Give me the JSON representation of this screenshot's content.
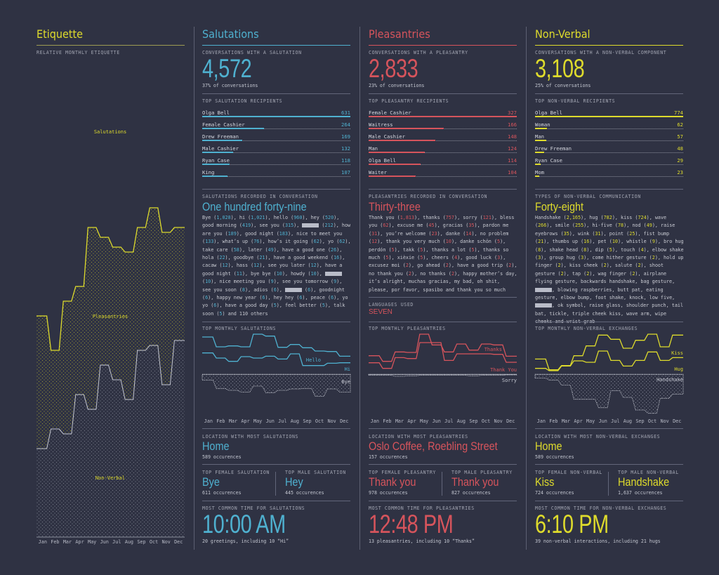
{
  "colors": {
    "background": "#2f3243",
    "salutations": "#4fb1d0",
    "pleasantries": "#d6545c",
    "nonverbal": "#dedb2c",
    "neutral": "#b9bcc8"
  },
  "etiquette": {
    "title": "Etiquette",
    "subtitle": "Relative monthly etiquette",
    "labels": {
      "salutations": "Salutations",
      "pleasantries": "Pleasantries",
      "nonverbal": "Non-Verbal"
    }
  },
  "sections": [
    {
      "key": "salutations",
      "title": "Salutations",
      "total": {
        "label": "Conversations with a salutation",
        "value": "4,572",
        "sub": "37% of conversations"
      },
      "recipients": {
        "label": "Top salutation recipients",
        "items": [
          {
            "name": "Olga Bell",
            "value": 631
          },
          {
            "name": "Female Cashier",
            "value": 264
          },
          {
            "name": "Drew Freeman",
            "value": 169
          },
          {
            "name": "Male Cashier",
            "value": 132
          },
          {
            "name": "Ryan Case",
            "value": 118
          },
          {
            "name": "King",
            "value": 107
          }
        ]
      },
      "recorded": {
        "label": "Salutations recorded in conversation",
        "word": "One hundred forty-nine",
        "items": [
          {
            "t": "Bye",
            "n": "1,028"
          },
          {
            "t": "hi",
            "n": "1,021"
          },
          {
            "t": "hello",
            "n": "960"
          },
          {
            "t": "hey",
            "n": "520"
          },
          {
            "t": "good morning",
            "n": "419"
          },
          {
            "t": "see you",
            "n": "315"
          },
          {
            "redacted": true,
            "n": "212"
          },
          {
            "t": "how are you",
            "n": "189"
          },
          {
            "t": "good night",
            "n": "183"
          },
          {
            "t": "nice to meet you",
            "n": "133"
          },
          {
            "t": "what’s up",
            "n": "76"
          },
          {
            "t": "how’s it going",
            "n": "62"
          },
          {
            "t": "yo",
            "n": "62"
          },
          {
            "t": "take care",
            "n": "58"
          },
          {
            "t": "later",
            "n": "49"
          },
          {
            "t": "have a good one",
            "n": "26"
          },
          {
            "t": "hola",
            "n": "22"
          },
          {
            "t": "goodbye",
            "n": "21"
          },
          {
            "t": "have a good weekend",
            "n": "16"
          },
          {
            "t": "cacaw",
            "n": "12"
          },
          {
            "t": "hass",
            "n": "12"
          },
          {
            "t": "see you later",
            "n": "12"
          },
          {
            "t": "have a good night",
            "n": "11"
          },
          {
            "t": "bye bye",
            "n": "10"
          },
          {
            "t": "howdy",
            "n": "10"
          },
          {
            "redacted": true,
            "n": "10"
          },
          {
            "t": "nice meeting you",
            "n": "9"
          },
          {
            "t": "see you tomorrow",
            "n": "9"
          },
          {
            "t": "see you soon",
            "n": "8"
          },
          {
            "t": "adios",
            "n": "6"
          },
          {
            "redacted": true,
            "n": "6"
          },
          {
            "t": "goodnight",
            "n": "6"
          },
          {
            "t": "happy new year",
            "n": "6"
          },
          {
            "t": "hey hey",
            "n": "6"
          },
          {
            "t": "peace",
            "n": "6"
          },
          {
            "t": "yo yo",
            "n": "6"
          },
          {
            "t": "have a good day",
            "n": "5"
          },
          {
            "t": "feel better",
            "n": "5"
          },
          {
            "t": "talk soon",
            "n": "5"
          }
        ],
        "tail": " and 110 others"
      },
      "monthly_label": "Top monthly salutations",
      "location": {
        "label": "Location with most salutations",
        "value": "Home",
        "sub": "589 occurences"
      },
      "female": {
        "label": "Top female salutation",
        "value": "Bye",
        "sub": "611 occurences"
      },
      "male": {
        "label": "Top male salutation",
        "value": "Hey",
        "sub": "445 occurences"
      },
      "time": {
        "label": "Most common time for salutations",
        "value": "10:00 AM",
        "sub": "20 greetings, including 10 “Hi”"
      }
    },
    {
      "key": "pleasantries",
      "title": "Pleasantries",
      "total": {
        "label": "Conversations with a pleasantry",
        "value": "2,833",
        "sub": "23% of conversations"
      },
      "recipients": {
        "label": "Top pleasantry recipients",
        "items": [
          {
            "name": "Female Cashier",
            "value": 327
          },
          {
            "name": "Waitress",
            "value": 166
          },
          {
            "name": "Male Cashier",
            "value": 148
          },
          {
            "name": "Man",
            "value": 124
          },
          {
            "name": "Olga Bell",
            "value": 114
          },
          {
            "name": "Waiter",
            "value": 104
          }
        ]
      },
      "recorded": {
        "label": "Pleasantries recorded in conversation",
        "word": "Thirty-three",
        "items": [
          {
            "t": "Thank you",
            "n": "1,813"
          },
          {
            "t": "thanks",
            "n": "757"
          },
          {
            "t": "sorry",
            "n": "121"
          },
          {
            "t": "bless you",
            "n": "62"
          },
          {
            "t": "excuse me",
            "n": "45"
          },
          {
            "t": "gracias",
            "n": "35"
          },
          {
            "t": "pardon me",
            "n": "31"
          },
          {
            "t": "you’re welcome",
            "n": "23"
          },
          {
            "t": "danke",
            "n": "14"
          },
          {
            "t": "no problem",
            "n": "12"
          },
          {
            "t": "thank you very much",
            "n": "10"
          },
          {
            "t": "danke schön",
            "n": "5"
          },
          {
            "t": "perdón",
            "n": "5"
          },
          {
            "t": "takk",
            "n": "5"
          },
          {
            "t": "thanks a lot",
            "n": "5"
          },
          {
            "t": "thanks so much",
            "n": "5"
          },
          {
            "t": "xièxie",
            "n": "5"
          },
          {
            "t": "cheers",
            "n": "4"
          },
          {
            "t": "good luck",
            "n": "3"
          },
          {
            "t": "excusez moi",
            "n": "2"
          },
          {
            "t": "go ahead",
            "n": "2"
          },
          {
            "t": "have a good trip",
            "n": "2"
          },
          {
            "t": "no thank you",
            "n": "2"
          },
          {
            "t": "no thanks",
            "n": "2"
          },
          {
            "t": "happy mother’s day"
          },
          {
            "t": "it’s alright"
          },
          {
            "t": "muchas gracias"
          },
          {
            "t": "my bad"
          },
          {
            "t": "oh shit"
          },
          {
            "t": "please"
          },
          {
            "t": "por favor"
          },
          {
            "t": "spasibo"
          }
        ],
        "tail": " and thank you so much"
      },
      "languages": {
        "label": "Languages used",
        "value": "SEVEN"
      },
      "monthly_label": "Top monthly pleasantries",
      "location": {
        "label": "Location with most pleasantries",
        "value": "Oslo Coffee, Roebling Street",
        "sub": "157 occurences"
      },
      "female": {
        "label": "Top female pleasantry",
        "value": "Thank you",
        "sub": "978 occurences"
      },
      "male": {
        "label": "Top male pleasantry",
        "value": "Thank you",
        "sub": "827 occurences"
      },
      "time": {
        "label": "Most common time for pleasantries",
        "value": "12:48 PM",
        "sub": "13 pleasantries, including 10 “Thanks”"
      }
    },
    {
      "key": "nonverbal",
      "title": "Non-Verbal",
      "total": {
        "label": "Conversations with a non-verbal component",
        "value": "3,108",
        "sub": "25% of conversations"
      },
      "recipients": {
        "label": "Top non-verbal recipients",
        "items": [
          {
            "name": "Olga Bell",
            "value": 774
          },
          {
            "name": "Woman",
            "value": 62
          },
          {
            "name": "Man",
            "value": 57
          },
          {
            "name": "Drew Freeman",
            "value": 48
          },
          {
            "name": "Ryan Case",
            "value": 29
          },
          {
            "name": "Mom",
            "value": 23
          }
        ]
      },
      "recorded": {
        "label": "Types of non-verbal communication",
        "word": "Forty-eight",
        "items": [
          {
            "t": "Handshake",
            "n": "2,165"
          },
          {
            "t": "hug",
            "n": "782"
          },
          {
            "t": "kiss",
            "n": "724"
          },
          {
            "t": "wave",
            "n": "266"
          },
          {
            "t": "smile",
            "n": "255"
          },
          {
            "t": "hi-five",
            "n": "78"
          },
          {
            "t": "nod",
            "n": "49"
          },
          {
            "t": "raise eyebrows",
            "n": "35"
          },
          {
            "t": "wink",
            "n": "31"
          },
          {
            "t": "point",
            "n": "25"
          },
          {
            "t": "fist bump",
            "n": "21"
          },
          {
            "t": "thumbs up",
            "n": "16"
          },
          {
            "t": "pet",
            "n": "10"
          },
          {
            "t": "whistle",
            "n": "9"
          },
          {
            "t": "bro hug",
            "n": "8"
          },
          {
            "t": "shake head",
            "n": "8"
          },
          {
            "t": "dip",
            "n": "5"
          },
          {
            "t": "touch",
            "n": "4"
          },
          {
            "t": "elbow shake",
            "n": "3"
          },
          {
            "t": "group hug",
            "n": "3"
          },
          {
            "t": "come hither gesture",
            "n": "2"
          },
          {
            "t": "hold up finger",
            "n": "2"
          },
          {
            "t": "kiss cheek",
            "n": "2"
          },
          {
            "t": "salute",
            "n": "2"
          },
          {
            "t": "shoot gesture",
            "n": "2"
          },
          {
            "t": "tap",
            "n": "2"
          },
          {
            "t": "wag finger",
            "n": "2"
          },
          {
            "t": "airplane flying gesture"
          },
          {
            "t": "backwards handshake"
          },
          {
            "t": "bag gesture"
          },
          {
            "redacted": true
          },
          {
            "t": "blowing raspberries"
          },
          {
            "t": "butt pat"
          },
          {
            "t": "eating gesture"
          },
          {
            "t": "elbow bump"
          },
          {
            "t": "foot shake"
          },
          {
            "t": "knock"
          },
          {
            "t": "low five"
          },
          {
            "redacted": true
          },
          {
            "t": "ok symbol"
          },
          {
            "t": "raise glass"
          },
          {
            "t": "shoulder punch"
          },
          {
            "t": "tail bat"
          },
          {
            "t": "tickle"
          },
          {
            "t": "triple cheek kiss"
          },
          {
            "t": "wave arm"
          },
          {
            "t": "wipe cheeks"
          }
        ],
        "tail": " and wrist grab"
      },
      "monthly_label": "Top monthly non-verbal exchanges",
      "location": {
        "label": "Location with most non-verbal exchanges",
        "value": "Home",
        "sub": "589 occurences"
      },
      "female": {
        "label": "Top female non-verbal",
        "value": "Kiss",
        "sub": "724 occurences"
      },
      "male": {
        "label": "Top male non-verbal",
        "value": "Handshake",
        "sub": "1,637 occurences"
      },
      "time": {
        "label": "Most common time for non-verbal exchanges",
        "value": "6:10 PM",
        "sub": "39 non-verbal interactions, including 21 hugs"
      }
    }
  ],
  "chart_data": [
    {
      "type": "area",
      "title": "Relative monthly etiquette",
      "stacked": "percent",
      "categories": [
        "Jan",
        "Feb",
        "Mar",
        "Apr",
        "May",
        "Jun",
        "Jul",
        "Aug",
        "Sep",
        "Oct",
        "Nov",
        "Dec"
      ],
      "ylim": [
        0,
        100
      ],
      "series": [
        {
          "name": "Non-Verbal",
          "values": [
            18,
            22,
            21,
            29,
            26,
            35,
            32,
            28,
            38,
            39,
            31,
            40
          ]
        },
        {
          "name": "Pleasantries",
          "values": [
            27,
            16,
            27,
            22,
            37,
            26,
            27,
            30,
            25,
            28,
            31,
            23
          ]
        },
        {
          "name": "Salutations",
          "values": [
            55,
            62,
            52,
            49,
            37,
            39,
            41,
            42,
            37,
            33,
            38,
            37
          ]
        }
      ]
    },
    {
      "type": "line",
      "title": "Top monthly salutations",
      "categories": [
        "Jan",
        "Feb",
        "Mar",
        "Apr",
        "May",
        "Jun",
        "Jul",
        "Aug",
        "Sep",
        "Oct",
        "Nov",
        "Dec"
      ],
      "series": [
        {
          "name": "Hello",
          "values": [
            85,
            64,
            66,
            64,
            91,
            87,
            63,
            69,
            62,
            55,
            54,
            44
          ]
        },
        {
          "name": "Hi",
          "values": [
            51,
            40,
            33,
            43,
            40,
            44,
            38,
            49,
            24,
            24,
            29,
            30
          ]
        },
        {
          "name": "Bye",
          "values": [
            12,
            30,
            34,
            38,
            25,
            39,
            34,
            31,
            30,
            47,
            31,
            38
          ]
        }
      ]
    },
    {
      "type": "line",
      "title": "Top monthly pleasantries",
      "categories": [
        "Jan",
        "Feb",
        "Mar",
        "Apr",
        "May",
        "Jun",
        "Jul",
        "Aug",
        "Sep",
        "Oct",
        "Nov",
        "Dec"
      ],
      "series": [
        {
          "name": "Thanks",
          "values": [
            45,
            33,
            53,
            52,
            91,
            68,
            53,
            70,
            57,
            70,
            68,
            44
          ]
        },
        {
          "name": "Thank You",
          "values": [
            30,
            18,
            41,
            39,
            73,
            73,
            35,
            49,
            49,
            49,
            48,
            31
          ]
        },
        {
          "name": "Sorry",
          "values": [
            2,
            2,
            4,
            3,
            2,
            2,
            2,
            2,
            3,
            2,
            2,
            1
          ]
        }
      ]
    },
    {
      "type": "line",
      "title": "Top monthly non-verbal exchanges",
      "categories": [
        "Jan",
        "Feb",
        "Mar",
        "Apr",
        "May",
        "Jun",
        "Jul",
        "Aug",
        "Sep",
        "Oct",
        "Nov",
        "Dec"
      ],
      "series": [
        {
          "name": "Kiss",
          "values": [
            38,
            15,
            24,
            45,
            66,
            89,
            80,
            61,
            78,
            91,
            64,
            89
          ]
        },
        {
          "name": "Hug",
          "values": [
            18,
            13,
            23,
            34,
            31,
            55,
            35,
            23,
            35,
            53,
            35,
            41
          ]
        },
        {
          "name": "Handshake",
          "values": [
            8,
            12,
            23,
            53,
            53,
            71,
            35,
            49,
            76,
            83,
            51,
            42
          ]
        }
      ]
    }
  ]
}
